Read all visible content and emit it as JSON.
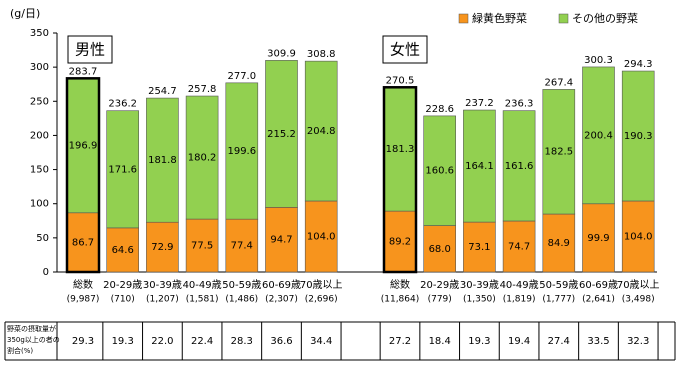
{
  "chart_data": {
    "type": "stacked-bar",
    "y_unit": "(g/日)",
    "ylim": [
      0,
      350
    ],
    "yticks": [
      0,
      50,
      100,
      150,
      200,
      250,
      300,
      350
    ],
    "series": [
      {
        "name": "緑黄色野菜",
        "color": "#f7941d"
      },
      {
        "name": "その他の野菜",
        "color": "#92d050"
      }
    ],
    "groups": [
      {
        "name": "男性",
        "categories": [
          "総数",
          "20-29歳",
          "30-39歳",
          "40-49歳",
          "50-59歳",
          "60-69歳",
          "70歳以上"
        ],
        "counts": [
          "(9,987)",
          "(710)",
          "(1,207)",
          "(1,581)",
          "(1,486)",
          "(2,307)",
          "(2,696)"
        ],
        "series": [
          {
            "values": [
              86.7,
              64.6,
              72.9,
              77.5,
              77.4,
              94.7,
              104.0
            ],
            "value_labels": [
              "86.7",
              "64.6",
              "72.9",
              "77.5",
              "77.4",
              "94.7",
              "104.0"
            ]
          },
          {
            "values": [
              196.9,
              171.6,
              181.8,
              180.2,
              199.6,
              215.2,
              204.8
            ],
            "value_labels": [
              "196.9",
              "171.6",
              "181.8",
              "180.2",
              "199.6",
              "215.2",
              "204.8"
            ]
          }
        ],
        "totals": [
          283.7,
          236.2,
          254.7,
          257.8,
          277.0,
          309.9,
          308.8
        ],
        "total_labels": [
          "283.7",
          "236.2",
          "254.7",
          "257.8",
          "277.0",
          "309.9",
          "308.8"
        ]
      },
      {
        "name": "女性",
        "categories": [
          "総数",
          "20-29歳",
          "30-39歳",
          "40-49歳",
          "50-59歳",
          "60-69歳",
          "70歳以上"
        ],
        "counts": [
          "(11,864)",
          "(779)",
          "(1,350)",
          "(1,819)",
          "(1,777)",
          "(2,641)",
          "(3,498)"
        ],
        "series": [
          {
            "values": [
              89.2,
              68.0,
              73.1,
              74.7,
              84.9,
              99.9,
              104.0
            ],
            "value_labels": [
              "89.2",
              "68.0",
              "73.1",
              "74.7",
              "84.9",
              "99.9",
              "104.0"
            ]
          },
          {
            "values": [
              181.3,
              160.6,
              164.1,
              161.6,
              182.5,
              200.4,
              190.3
            ],
            "value_labels": [
              "181.3",
              "160.6",
              "164.1",
              "161.6",
              "182.5",
              "200.4",
              "190.3"
            ]
          }
        ],
        "totals": [
          270.5,
          228.6,
          237.2,
          236.3,
          267.4,
          300.3,
          294.3
        ],
        "total_labels": [
          "270.5",
          "228.6",
          "237.2",
          "236.3",
          "267.4",
          "300.3",
          "294.3"
        ]
      }
    ]
  },
  "table": {
    "row_label": [
      "野菜の摂取量が",
      "350g以上の者の",
      "割合(%)"
    ],
    "groups": [
      [
        "29.3",
        "19.3",
        "22.0",
        "22.4",
        "28.3",
        "36.6",
        "34.4"
      ],
      [
        "27.2",
        "18.4",
        "19.3",
        "19.4",
        "27.4",
        "33.5",
        "32.3"
      ]
    ]
  }
}
